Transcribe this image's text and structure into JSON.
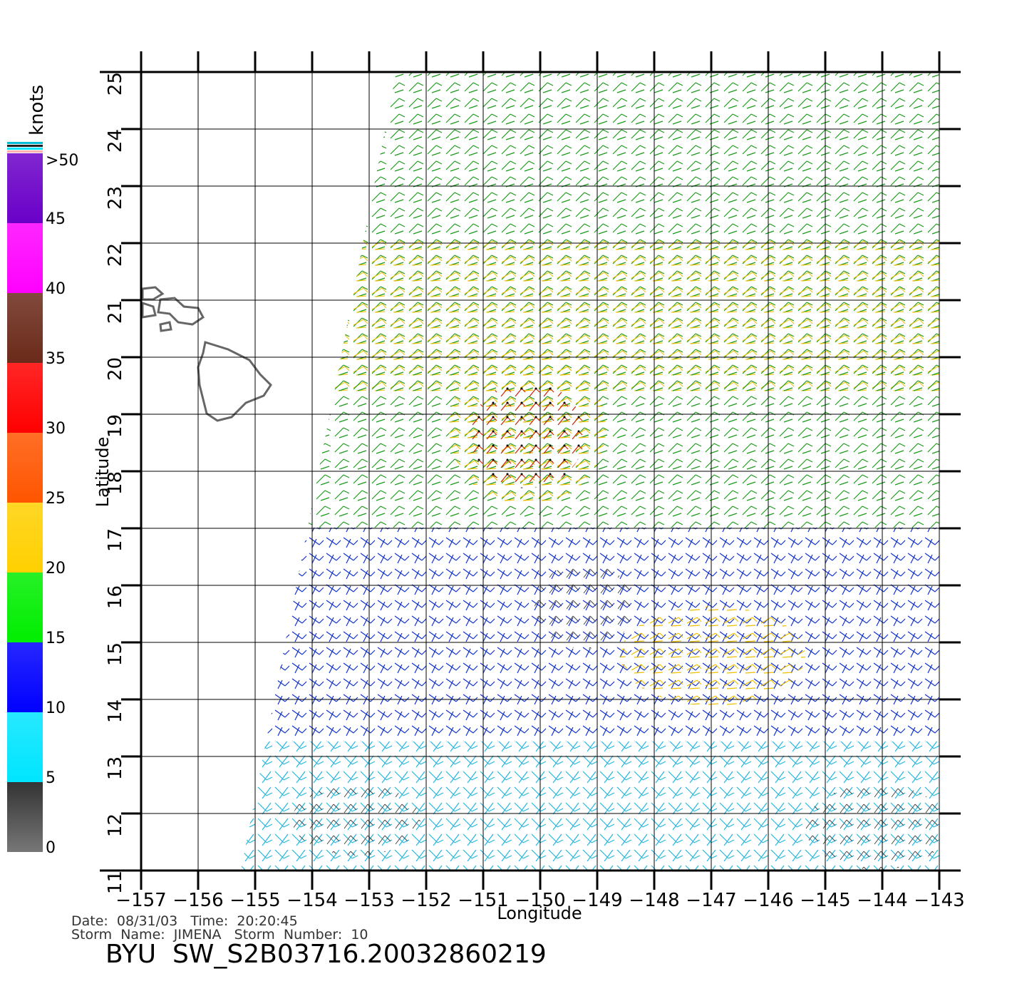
{
  "chart_data": {
    "type": "wind-map",
    "title": "BYU  SW_S2B03716.20032860219",
    "date_line": "Date:  08/31/03   Time:  20:20:45",
    "storm_line": "Storm  Name:  JIMENA   Storm  Number:  10",
    "x_label": "Longitude",
    "y_label": "Latitude",
    "xlim": [
      -157,
      -143
    ],
    "ylim": [
      11,
      25
    ],
    "xticks": [
      {
        "value": -157,
        "label": "−157"
      },
      {
        "value": -156,
        "label": "−156"
      },
      {
        "value": -155,
        "label": "−155"
      },
      {
        "value": -154,
        "label": "−154"
      },
      {
        "value": -153,
        "label": "−153"
      },
      {
        "value": -152,
        "label": "−152"
      },
      {
        "value": -151,
        "label": "−151"
      },
      {
        "value": -150,
        "label": "−150"
      },
      {
        "value": -149,
        "label": "−149"
      },
      {
        "value": -148,
        "label": "−148"
      },
      {
        "value": -147,
        "label": "−147"
      },
      {
        "value": -146,
        "label": "−146"
      },
      {
        "value": -145,
        "label": "−145"
      },
      {
        "value": -144,
        "label": "−144"
      },
      {
        "value": -143,
        "label": "−143"
      }
    ],
    "yticks": [
      11,
      12,
      13,
      14,
      15,
      16,
      17,
      18,
      19,
      20,
      21,
      22,
      23,
      24,
      25
    ],
    "grid": true,
    "colorbar": {
      "label": "knots",
      "range": [
        0,
        50
      ],
      "ticks": [
        0,
        5,
        10,
        15,
        20,
        25,
        30,
        35,
        40,
        45,
        {
          "value": 50,
          "label": ">50"
        }
      ],
      "colors": [
        "#777777",
        "#00e5ff",
        "#0000ff",
        "#00ee00",
        "#ffd000",
        "#ff5500",
        "#ff0000",
        "#6b2a1a",
        "#ff00ff",
        "#6a00c8"
      ]
    }
  }
}
